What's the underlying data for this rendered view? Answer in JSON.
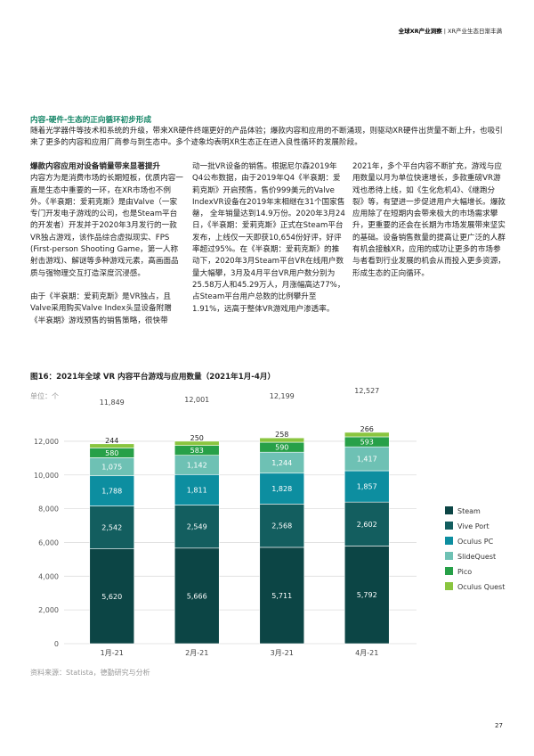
{
  "header": {
    "title": "全球XR产业洞察",
    "subtitle": "| XR产业生态日渐丰满"
  },
  "section": {
    "heading": "内容-硬件-生态的正向循环初步形成",
    "paragraph": "随着光学器件等技术和系统的升级，带来XR硬件终端更好的产品体验；爆款内容和应用的不断涌现，则驱动XR硬件出货量不断上升，也吸引来了更多的内容和应用厂商参与到生态中。多个迹象均表明XR生态正在进入良性循环的发展阶段。"
  },
  "columns": [
    {
      "heading": "爆款内容应用对设备销量带来显著提升",
      "paragraphs": [
        "内容方为是消费市场的长期短板，优质内容一直是生态中重要的一环，在XR市场也不例外。《半衰期：爱莉克斯》是由Valve（一家专门开发电子游戏的公司，也是Steam平台的开发者）开发并于2020年3月发行的一款VR独占游戏，该作品综合虚拟现实、FPS (First-person Shooting Game，第一人称射击游戏)、解谜等多种游戏元素，高画面品质与强物理交互打造深度沉浸感。",
        "由于《半衰期：爱莉克斯》是VR独占，且Valve采用购买Valve Index头显设备附赠《半衰期》游戏预售的销售策略，很快带"
      ]
    },
    {
      "paragraphs": [
        "动一批VR设备的销售。根据尼尔森2019年Q4公布数据，由于2019年Q4《半衰期：爱莉克斯》开启预售，售价999美元的Valve IndexVR设备在2019年末相继在31个国家售罄， 全年销量达到14.9万份。2020年3月24日，《半衰期：爱莉克斯》正式在Steam平台发布，上线仅一天即获10,654份好评，好评率超过95%。在《半衰期：爱莉克斯》的推动下，2020年3月Steam平台VR在线用户数量大幅攀，3月及4月平台VR用户数分别为25.58万人和45.29万人，月涨幅高达77%，占Steam平台用户总数的比例攀升至1.91%，远高于整体VR游戏用户渗透率。"
      ]
    },
    {
      "paragraphs": [
        "2021年，多个平台内容不断扩充，游戏与应用数量以月为单位快速增长，多款重磅VR游戏也悉待上线，如《生化危机4》、《继跑分裂》等，有望进一步促进用户大幅增长。爆款应用除了在短期内会带来极大的市场需求攀升，更重要的还会在长期为市场发展带来坚实的基础。设备销售数量的提高让更广泛的人群有机会接触XR，应用的成功让更多的市场参与者看到行业发展的机会从而投入更多资源，形成生态的正向循环。"
      ]
    }
  ],
  "chart_data": {
    "type": "stacked_bar",
    "title": "图16：2021年全球 VR 内容平台游戏与应用数量（2021年1月-4月）",
    "unit": "单位：个",
    "source": "资料来源：Statista，德勤研究与分析",
    "categories": [
      "1月-21",
      "2月-21",
      "3月-21",
      "4月-21"
    ],
    "series": [
      {
        "name": "Steam",
        "color": "#0c4545",
        "values": [
          5620,
          5666,
          5711,
          5792
        ],
        "value_labels": [
          "5,620",
          "5,666",
          "5,711",
          "5,792"
        ]
      },
      {
        "name": "Vive Port",
        "color": "#135e5f",
        "values": [
          2542,
          2549,
          2568,
          2602
        ],
        "value_labels": [
          "2,542",
          "2,549",
          "2,568",
          "2,602"
        ]
      },
      {
        "name": "Oculus PC",
        "color": "#0d8ea0",
        "values": [
          1788,
          1811,
          1828,
          1857
        ],
        "value_labels": [
          "1,788",
          "1,811",
          "1,828",
          "1,857"
        ]
      },
      {
        "name": "SlideQuest",
        "color": "#6ec1b4",
        "values": [
          1075,
          1142,
          1244,
          1417
        ],
        "value_labels": [
          "1,075",
          "1,142",
          "1,244",
          "1,417"
        ]
      },
      {
        "name": "Pico",
        "color": "#27a048",
        "values": [
          580,
          583,
          590,
          593
        ]
      },
      {
        "name": "Oculus Quest",
        "color": "#8ac53f",
        "values": [
          244,
          250,
          258,
          266
        ]
      }
    ],
    "totals": [
      11849,
      12001,
      12199,
      12527
    ],
    "total_labels": [
      "11,849",
      "12,001",
      "12,199",
      "12,527"
    ],
    "ylim": [
      0,
      13000
    ],
    "yticks": [
      0,
      {
        "value": 2000,
        "label": "2,000"
      },
      {
        "value": 4000,
        "label": "4,000"
      },
      {
        "value": 6000,
        "label": "6,000"
      },
      {
        "value": 8000,
        "label": "8,000"
      },
      {
        "value": 10000,
        "label": "10,000"
      },
      {
        "value": 12000,
        "label": "12,000"
      }
    ],
    "grid": true
  },
  "page_number": "27"
}
